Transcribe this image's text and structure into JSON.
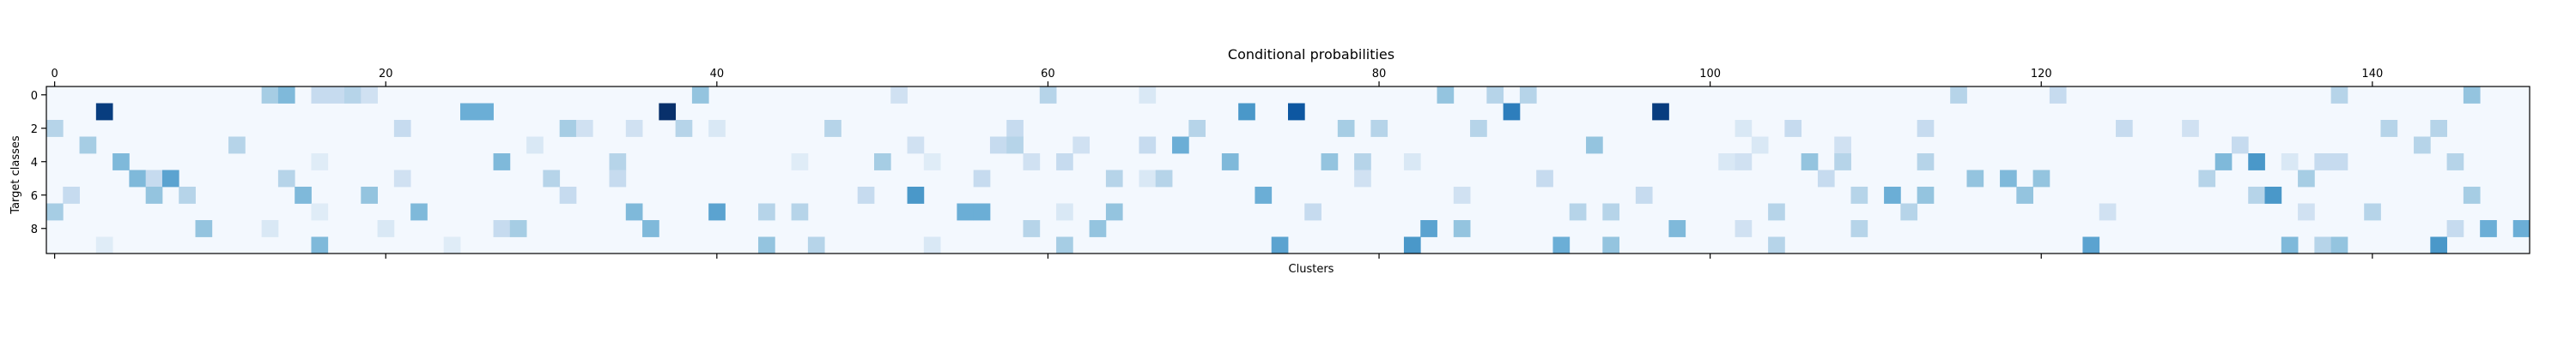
{
  "chart_data": {
    "type": "heatmap",
    "title": "Conditional probabilities",
    "xlabel": "Clusters",
    "ylabel": "Target classes",
    "x_axis_position": "top",
    "x_range": [
      0,
      149
    ],
    "y_range": [
      0,
      9
    ],
    "x_ticks": [
      0,
      20,
      40,
      60,
      80,
      100,
      120,
      140
    ],
    "y_ticks": [
      0,
      2,
      4,
      6,
      8
    ],
    "colormap": "Blues",
    "value_range": [
      0,
      1
    ],
    "grid": false,
    "legend": "none",
    "n_rows": 10,
    "n_cols": 150,
    "background_value": 0.02,
    "cells": [
      [
        0,
        13,
        0.35
      ],
      [
        0,
        14,
        0.45
      ],
      [
        0,
        16,
        0.25
      ],
      [
        0,
        17,
        0.25
      ],
      [
        0,
        18,
        0.3
      ],
      [
        0,
        19,
        0.2
      ],
      [
        0,
        39,
        0.4
      ],
      [
        0,
        51,
        0.2
      ],
      [
        0,
        60,
        0.3
      ],
      [
        0,
        66,
        0.15
      ],
      [
        0,
        84,
        0.4
      ],
      [
        0,
        87,
        0.3
      ],
      [
        0,
        89,
        0.3
      ],
      [
        0,
        115,
        0.3
      ],
      [
        0,
        121,
        0.25
      ],
      [
        0,
        138,
        0.3
      ],
      [
        0,
        146,
        0.4
      ],
      [
        1,
        3,
        0.95
      ],
      [
        1,
        25,
        0.5
      ],
      [
        1,
        26,
        0.5
      ],
      [
        1,
        37,
        1.0
      ],
      [
        1,
        72,
        0.6
      ],
      [
        1,
        75,
        0.85
      ],
      [
        1,
        88,
        0.7
      ],
      [
        1,
        97,
        0.95
      ],
      [
        2,
        0,
        0.3
      ],
      [
        2,
        21,
        0.25
      ],
      [
        2,
        31,
        0.35
      ],
      [
        2,
        32,
        0.2
      ],
      [
        2,
        35,
        0.2
      ],
      [
        2,
        38,
        0.3
      ],
      [
        2,
        40,
        0.15
      ],
      [
        2,
        47,
        0.3
      ],
      [
        2,
        58,
        0.25
      ],
      [
        2,
        69,
        0.3
      ],
      [
        2,
        78,
        0.35
      ],
      [
        2,
        80,
        0.3
      ],
      [
        2,
        86,
        0.3
      ],
      [
        2,
        102,
        0.15
      ],
      [
        2,
        105,
        0.25
      ],
      [
        2,
        113,
        0.25
      ],
      [
        2,
        125,
        0.25
      ],
      [
        2,
        129,
        0.2
      ],
      [
        2,
        141,
        0.3
      ],
      [
        2,
        144,
        0.3
      ],
      [
        3,
        2,
        0.35
      ],
      [
        3,
        11,
        0.3
      ],
      [
        3,
        29,
        0.15
      ],
      [
        3,
        52,
        0.2
      ],
      [
        3,
        57,
        0.25
      ],
      [
        3,
        58,
        0.3
      ],
      [
        3,
        62,
        0.2
      ],
      [
        3,
        66,
        0.25
      ],
      [
        3,
        68,
        0.5
      ],
      [
        3,
        93,
        0.4
      ],
      [
        3,
        103,
        0.15
      ],
      [
        3,
        108,
        0.2
      ],
      [
        3,
        132,
        0.25
      ],
      [
        3,
        143,
        0.3
      ],
      [
        4,
        4,
        0.45
      ],
      [
        4,
        16,
        0.12
      ],
      [
        4,
        27,
        0.45
      ],
      [
        4,
        34,
        0.3
      ],
      [
        4,
        45,
        0.12
      ],
      [
        4,
        50,
        0.35
      ],
      [
        4,
        53,
        0.12
      ],
      [
        4,
        59,
        0.2
      ],
      [
        4,
        61,
        0.25
      ],
      [
        4,
        71,
        0.45
      ],
      [
        4,
        77,
        0.4
      ],
      [
        4,
        79,
        0.3
      ],
      [
        4,
        82,
        0.15
      ],
      [
        4,
        101,
        0.15
      ],
      [
        4,
        102,
        0.2
      ],
      [
        4,
        106,
        0.4
      ],
      [
        4,
        108,
        0.3
      ],
      [
        4,
        113,
        0.3
      ],
      [
        4,
        131,
        0.45
      ],
      [
        4,
        133,
        0.6
      ],
      [
        4,
        135,
        0.15
      ],
      [
        4,
        137,
        0.25
      ],
      [
        4,
        138,
        0.25
      ],
      [
        4,
        145,
        0.3
      ],
      [
        5,
        5,
        0.45
      ],
      [
        5,
        6,
        0.25
      ],
      [
        5,
        7,
        0.55
      ],
      [
        5,
        14,
        0.3
      ],
      [
        5,
        21,
        0.2
      ],
      [
        5,
        30,
        0.3
      ],
      [
        5,
        34,
        0.25
      ],
      [
        5,
        56,
        0.25
      ],
      [
        5,
        64,
        0.3
      ],
      [
        5,
        66,
        0.15
      ],
      [
        5,
        67,
        0.3
      ],
      [
        5,
        79,
        0.2
      ],
      [
        5,
        90,
        0.25
      ],
      [
        5,
        107,
        0.25
      ],
      [
        5,
        116,
        0.4
      ],
      [
        5,
        118,
        0.45
      ],
      [
        5,
        120,
        0.4
      ],
      [
        5,
        130,
        0.3
      ],
      [
        5,
        136,
        0.35
      ],
      [
        6,
        1,
        0.25
      ],
      [
        6,
        6,
        0.4
      ],
      [
        6,
        8,
        0.3
      ],
      [
        6,
        15,
        0.45
      ],
      [
        6,
        19,
        0.4
      ],
      [
        6,
        31,
        0.25
      ],
      [
        6,
        49,
        0.25
      ],
      [
        6,
        52,
        0.6
      ],
      [
        6,
        73,
        0.5
      ],
      [
        6,
        85,
        0.2
      ],
      [
        6,
        96,
        0.25
      ],
      [
        6,
        109,
        0.3
      ],
      [
        6,
        111,
        0.5
      ],
      [
        6,
        113,
        0.4
      ],
      [
        6,
        119,
        0.4
      ],
      [
        6,
        133,
        0.3
      ],
      [
        6,
        134,
        0.6
      ],
      [
        6,
        146,
        0.35
      ],
      [
        7,
        0,
        0.35
      ],
      [
        7,
        16,
        0.12
      ],
      [
        7,
        22,
        0.45
      ],
      [
        7,
        35,
        0.45
      ],
      [
        7,
        40,
        0.55
      ],
      [
        7,
        43,
        0.3
      ],
      [
        7,
        45,
        0.3
      ],
      [
        7,
        55,
        0.5
      ],
      [
        7,
        56,
        0.5
      ],
      [
        7,
        61,
        0.15
      ],
      [
        7,
        64,
        0.4
      ],
      [
        7,
        76,
        0.25
      ],
      [
        7,
        92,
        0.3
      ],
      [
        7,
        94,
        0.3
      ],
      [
        7,
        104,
        0.3
      ],
      [
        7,
        112,
        0.3
      ],
      [
        7,
        124,
        0.2
      ],
      [
        7,
        136,
        0.2
      ],
      [
        7,
        140,
        0.3
      ],
      [
        8,
        9,
        0.4
      ],
      [
        8,
        13,
        0.15
      ],
      [
        8,
        20,
        0.15
      ],
      [
        8,
        27,
        0.25
      ],
      [
        8,
        28,
        0.35
      ],
      [
        8,
        36,
        0.45
      ],
      [
        8,
        59,
        0.3
      ],
      [
        8,
        63,
        0.4
      ],
      [
        8,
        83,
        0.55
      ],
      [
        8,
        85,
        0.4
      ],
      [
        8,
        98,
        0.45
      ],
      [
        8,
        102,
        0.2
      ],
      [
        8,
        109,
        0.3
      ],
      [
        8,
        145,
        0.25
      ],
      [
        8,
        147,
        0.5
      ],
      [
        8,
        149,
        0.5
      ],
      [
        9,
        3,
        0.12
      ],
      [
        9,
        16,
        0.45
      ],
      [
        9,
        24,
        0.12
      ],
      [
        9,
        43,
        0.4
      ],
      [
        9,
        46,
        0.3
      ],
      [
        9,
        53,
        0.15
      ],
      [
        9,
        61,
        0.35
      ],
      [
        9,
        74,
        0.55
      ],
      [
        9,
        82,
        0.6
      ],
      [
        9,
        91,
        0.5
      ],
      [
        9,
        94,
        0.4
      ],
      [
        9,
        104,
        0.3
      ],
      [
        9,
        123,
        0.55
      ],
      [
        9,
        135,
        0.45
      ],
      [
        9,
        137,
        0.3
      ],
      [
        9,
        138,
        0.4
      ],
      [
        9,
        144,
        0.6
      ]
    ]
  }
}
